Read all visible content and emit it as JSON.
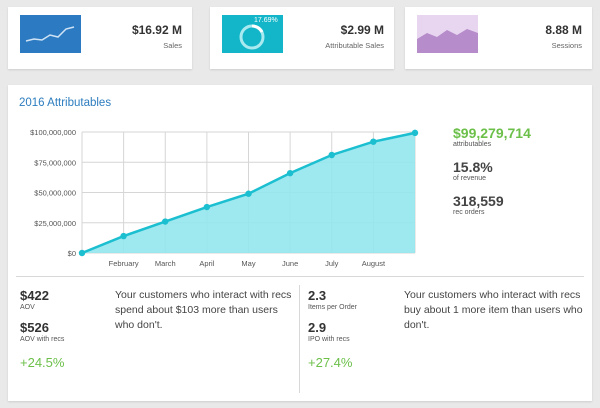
{
  "kpis": [
    {
      "value": "$16.92 M",
      "label": "Sales",
      "thumb_color": "#2c7bc2",
      "thumb_icon": "line-chart-icon"
    },
    {
      "value": "$2.99 M",
      "label": "Attributable Sales",
      "thumb_color": "#12b6c8",
      "thumb_icon": "donut-icon",
      "donut_text": "17.69%"
    },
    {
      "value": "8.88 M",
      "label": "Sessions",
      "thumb_color": "#b68ccb",
      "thumb_icon": "area-chart-icon"
    }
  ],
  "main": {
    "title": "2016 Attributables",
    "side_stats": [
      {
        "value": "$99,279,714",
        "label": "attributables",
        "color": "#6cc04a"
      },
      {
        "value": "15.8%",
        "label": "of revenue",
        "color": "#444444"
      },
      {
        "value": "318,559",
        "label": "rec orders",
        "color": "#444444"
      }
    ]
  },
  "chart_data": {
    "type": "area",
    "x": [
      "",
      "February",
      "March",
      "April",
      "May",
      "June",
      "July",
      "August",
      ""
    ],
    "values": [
      0,
      14000000,
      26000000,
      38000000,
      49000000,
      66000000,
      81000000,
      92000000,
      99279714
    ],
    "y_ticks": [
      "$0",
      "$25,000,000",
      "$50,000,000",
      "$75,000,000",
      "$100,000,000"
    ],
    "ylim": [
      0,
      100000000
    ],
    "line_color": "#1bbfd0",
    "fill_color": "#93e6ee",
    "grid": true
  },
  "bottom_left": {
    "metrics": [
      {
        "value": "$422",
        "label": "AOV"
      },
      {
        "value": "$526",
        "label": "AOV with recs"
      }
    ],
    "change": "+24.5%",
    "blurb": "Your customers who interact with recs spend about $103 more than users who don't."
  },
  "bottom_right": {
    "metrics": [
      {
        "value": "2.3",
        "label": "Items per Order"
      },
      {
        "value": "2.9",
        "label": "IPO with recs"
      }
    ],
    "change": "+27.4%",
    "blurb": "Your customers who interact with recs buy about 1 more item than users who don't."
  }
}
